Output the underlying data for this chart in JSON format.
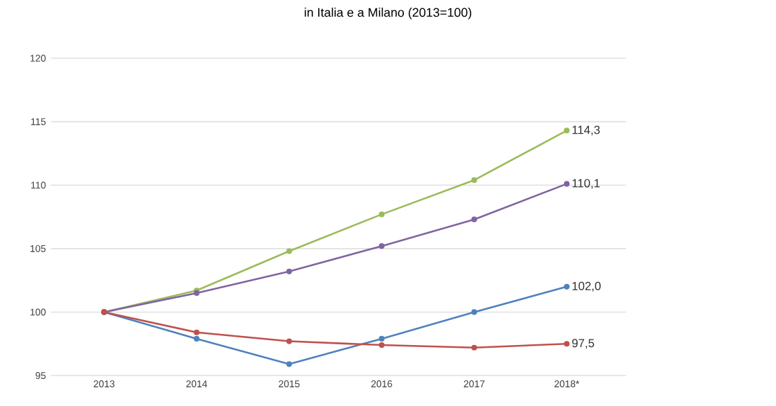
{
  "chart_data": {
    "type": "line",
    "title": "in Italia e a  Milano (2013=100)",
    "categories": [
      "2013",
      "2014",
      "2015",
      "2016",
      "2017",
      "2018*"
    ],
    "series": [
      {
        "color": "#9bbb59",
        "values": [
          100,
          101.7,
          104.8,
          107.7,
          110.4,
          114.3
        ],
        "value_labels": [
          null,
          null,
          null,
          null,
          null,
          "114,3"
        ]
      },
      {
        "color": "#8064a2",
        "values": [
          100,
          101.5,
          103.2,
          105.2,
          107.3,
          110.1
        ],
        "value_labels": [
          null,
          null,
          null,
          null,
          null,
          "110,1"
        ]
      },
      {
        "color": "#4f81bd",
        "values": [
          100,
          97.9,
          95.9,
          97.9,
          100.0,
          102.0
        ],
        "value_labels": [
          null,
          null,
          null,
          null,
          null,
          "102,0"
        ]
      },
      {
        "color": "#c0504d",
        "values": [
          100,
          98.4,
          97.7,
          97.4,
          97.2,
          97.5
        ],
        "value_labels": [
          null,
          null,
          null,
          null,
          null,
          "97,5"
        ]
      }
    ],
    "ylim": [
      95,
      120
    ],
    "yticks": [
      95,
      100,
      105,
      110,
      115,
      120
    ],
    "grid": "y",
    "marker": "circle",
    "line_style": "solid"
  }
}
